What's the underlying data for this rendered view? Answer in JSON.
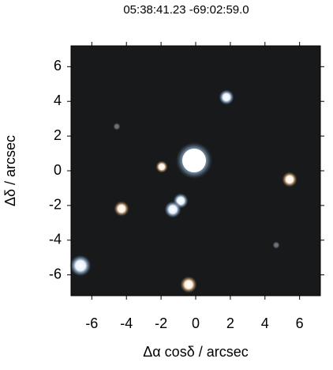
{
  "chart_data": {
    "type": "image",
    "title": "05:38:41.23 -69:02:59.0",
    "xlabel": "Δα cosδ / arcsec",
    "ylabel": "Δδ / arcsec",
    "xlim": [
      -7.2,
      7.2
    ],
    "ylim": [
      -7.2,
      7.2
    ],
    "xticks": [
      -6,
      -4,
      -2,
      0,
      2,
      4,
      6
    ],
    "yticks": [
      -6,
      -4,
      -2,
      0,
      2,
      4,
      6
    ]
  }
}
